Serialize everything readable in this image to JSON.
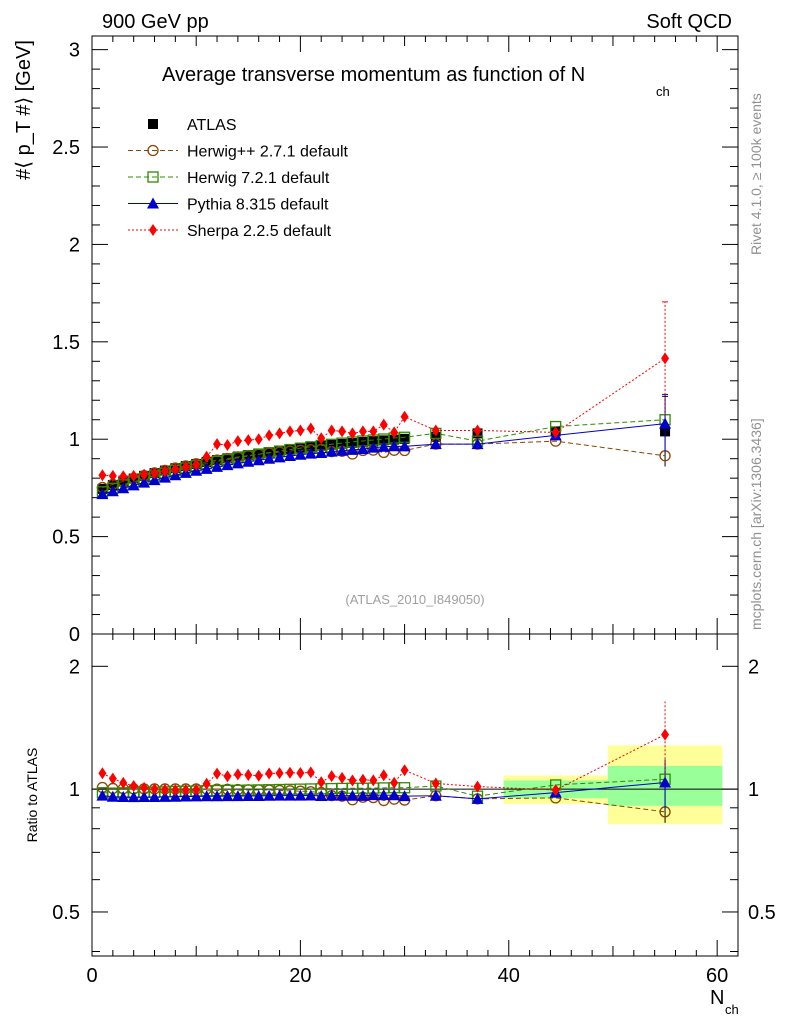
{
  "header": {
    "left_label": "900 GeV pp",
    "right_label": "Soft QCD"
  },
  "side_labels": {
    "rivet": "Rivet 4.1.0, ≥ 100k events",
    "mcplots": "mcplots.cern.ch [arXiv:1306.3436]"
  },
  "chart_data": {
    "type": "scatter",
    "title": "Average transverse momentum as function of N",
    "title_subscript": "ch",
    "watermark": "(ATLAS_2010_I849050)",
    "xlabel": "N",
    "xlabel_subscript": "ch",
    "ylabel": "#⟨ p_T #⟩ [GeV]",
    "ratio_ylabel": "Ratio to ATLAS",
    "xlim": [
      0,
      62
    ],
    "ylim": [
      0,
      3.07
    ],
    "ratio_ylim": [
      0.39,
      2.4
    ],
    "x_ticks": [
      0,
      20,
      40,
      60
    ],
    "y_ticks": [
      0.5,
      1,
      1.5,
      2,
      2.5,
      3
    ],
    "y_tick_labels": [
      "0.5",
      "1",
      "1.5",
      "2",
      "2.5",
      "3"
    ],
    "y_zero_label": "0",
    "ratio_ticks": [
      0.5,
      1,
      2
    ],
    "ratio_tick_labels": [
      "0.5",
      "1",
      "2"
    ],
    "ratio_bands": [
      {
        "x0": 39.5,
        "x1": 49.5,
        "yellow": [
          0.92,
          1.08
        ],
        "green": [
          0.95,
          1.05
        ]
      },
      {
        "x0": 49.5,
        "x1": 60.5,
        "yellow": [
          0.82,
          1.28
        ],
        "green": [
          0.91,
          1.14
        ]
      }
    ],
    "legend_position": "top-left",
    "x": [
      1,
      2,
      3,
      4,
      5,
      6,
      7,
      8,
      9,
      10,
      11,
      12,
      13,
      14,
      15,
      16,
      17,
      18,
      19,
      20,
      21,
      22,
      23,
      24,
      25,
      26,
      27,
      28,
      29,
      30,
      33,
      37,
      44.5,
      55
    ],
    "series": [
      {
        "name": "ATLAS",
        "color": "#000000",
        "marker": "square-filled",
        "line": "none",
        "values": [
          0.745,
          0.765,
          0.782,
          0.798,
          0.812,
          0.826,
          0.839,
          0.851,
          0.862,
          0.873,
          0.883,
          0.893,
          0.902,
          0.911,
          0.919,
          0.927,
          0.934,
          0.941,
          0.948,
          0.954,
          0.96,
          0.966,
          0.971,
          0.976,
          0.981,
          0.986,
          0.99,
          0.994,
          0.998,
          1.002,
          1.012,
          1.03,
          1.04,
          1.04
        ],
        "errors_top": [
          0.72,
          0.74,
          0.76,
          0.78,
          0.79,
          0.81,
          0.82,
          0.83,
          0.84,
          0.85,
          0.86,
          0.87,
          0.88,
          0.89,
          0.9,
          0.9,
          0.91,
          0.92,
          0.92,
          0.93,
          0.93,
          0.94,
          0.94,
          0.95,
          0.95,
          0.96,
          0.96,
          0.96,
          0.97,
          0.97,
          0.98,
          0.99,
          1.01,
          1.08
        ],
        "error_last": 0.18
      },
      {
        "name": "Herwig++ 2.7.1 default",
        "color": "#8b4500",
        "marker": "circle-open",
        "line": "dashed",
        "values": [
          0.752,
          0.768,
          0.784,
          0.799,
          0.813,
          0.827,
          0.84,
          0.852,
          0.863,
          0.874,
          0.884,
          0.893,
          0.901,
          0.909,
          0.916,
          0.923,
          0.929,
          0.934,
          0.939,
          0.943,
          0.946,
          0.948,
          0.936,
          0.938,
          0.924,
          0.942,
          0.944,
          0.932,
          0.943,
          0.942,
          0.975,
          0.975,
          0.99,
          0.915
        ]
      },
      {
        "name": "Herwig 7.2.1 default",
        "color": "#2e8b00",
        "marker": "square-open",
        "line": "dashed",
        "values": [
          0.73,
          0.748,
          0.766,
          0.782,
          0.797,
          0.812,
          0.826,
          0.84,
          0.852,
          0.864,
          0.875,
          0.886,
          0.896,
          0.905,
          0.914,
          0.923,
          0.931,
          0.939,
          0.947,
          0.954,
          0.961,
          0.968,
          0.974,
          0.98,
          0.986,
          0.991,
          0.996,
          1.001,
          1.006,
          1.01,
          1.03,
          0.99,
          1.065,
          1.1
        ]
      },
      {
        "name": "Pythia 8.315 default",
        "color": "#0000cd",
        "marker": "triangle-filled",
        "line": "solid",
        "values": [
          0.718,
          0.733,
          0.748,
          0.763,
          0.777,
          0.79,
          0.803,
          0.815,
          0.827,
          0.838,
          0.848,
          0.858,
          0.867,
          0.876,
          0.884,
          0.892,
          0.9,
          0.907,
          0.914,
          0.92,
          0.926,
          0.929,
          0.936,
          0.941,
          0.945,
          0.949,
          0.957,
          0.961,
          0.964,
          0.963,
          0.975,
          0.975,
          1.02,
          1.08
        ],
        "error_last": 0.15
      },
      {
        "name": "Sherpa 2.2.5 default",
        "color": "#ff0000",
        "marker": "diamond-filled",
        "line": "dotted",
        "values": [
          0.815,
          0.812,
          0.81,
          0.812,
          0.818,
          0.826,
          0.836,
          0.847,
          0.858,
          0.87,
          0.91,
          0.975,
          0.97,
          0.99,
          0.995,
          1.0,
          1.02,
          1.03,
          1.04,
          1.045,
          1.055,
          1.005,
          1.045,
          1.04,
          1.03,
          1.04,
          1.04,
          1.075,
          1.035,
          1.115,
          1.045,
          1.045,
          1.035,
          1.415
        ],
        "error_last": 0.29
      }
    ]
  }
}
